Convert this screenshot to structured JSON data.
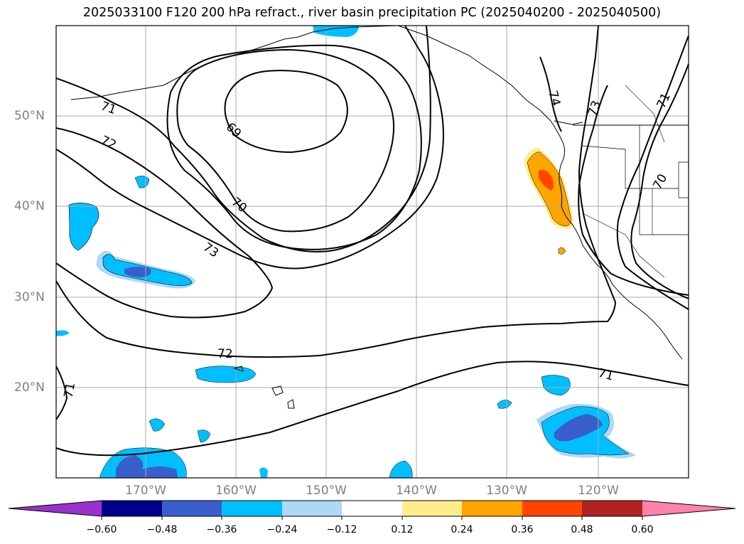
{
  "title": "2025033100 F120 200 hPa refract., river basin precipitation PC (2025040200 - 2025040500)",
  "map": {
    "lat_labels": [
      "50°N",
      "40°N",
      "30°N",
      "20°N"
    ],
    "lon_labels": [
      "170°W",
      "160°W",
      "150°W",
      "140°W",
      "130°W",
      "120°W"
    ],
    "contour_labels": [
      "71",
      "72",
      "73",
      "69",
      "70",
      "74",
      "73",
      "71",
      "70",
      "72",
      "71",
      "71"
    ]
  },
  "colorbar": {
    "ticks": [
      "−0.60",
      "−0.48",
      "−0.36",
      "−0.24",
      "−0.12",
      "0.12",
      "0.24",
      "0.36",
      "0.48",
      "0.60"
    ],
    "colors": [
      "#9932cc",
      "#00008b",
      "#3a5fcd",
      "#00bfff",
      "#add8f6",
      "#ffffff",
      "#ffec8b",
      "#ffa500",
      "#ff4500",
      "#b22222",
      "#ff82ab"
    ]
  }
}
